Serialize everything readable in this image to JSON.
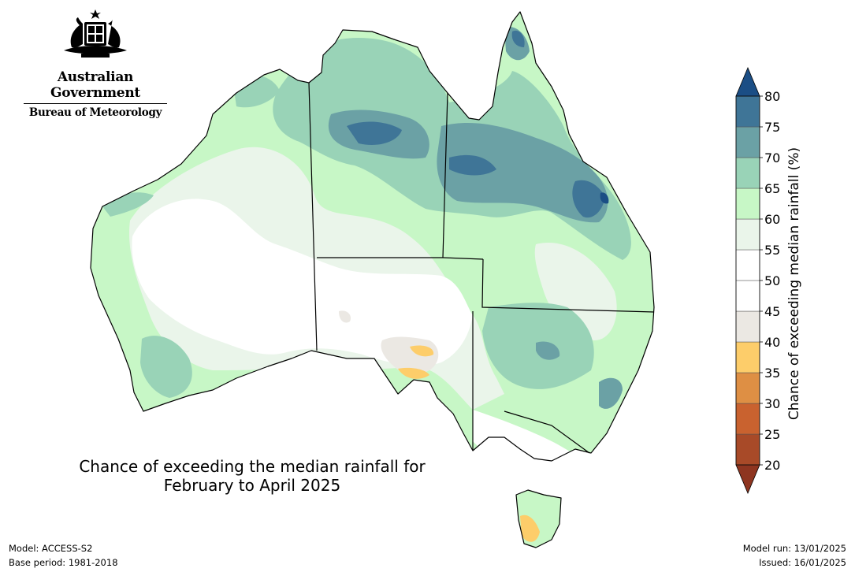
{
  "header": {
    "gov_name": "Australian Government",
    "agency_name": "Bureau of Meteorology"
  },
  "map": {
    "title_line1": "Chance of exceeding the median rainfall for",
    "title_line2": "February to April 2025"
  },
  "legend": {
    "label": "Chance of exceeding median rainfall (%)",
    "bins": [
      {
        "min": 20,
        "max": 25,
        "color": "#a84a28"
      },
      {
        "min": 25,
        "max": 30,
        "color": "#c9622f"
      },
      {
        "min": 30,
        "max": 35,
        "color": "#de8f44"
      },
      {
        "min": 35,
        "max": 40,
        "color": "#fdcd6a"
      },
      {
        "min": 40,
        "max": 45,
        "color": "#ebe8e3"
      },
      {
        "min": 45,
        "max": 50,
        "color": "#ffffff"
      },
      {
        "min": 50,
        "max": 55,
        "color": "#ffffff"
      },
      {
        "min": 55,
        "max": 60,
        "color": "#eaf5ea"
      },
      {
        "min": 60,
        "max": 65,
        "color": "#c7f7c6"
      },
      {
        "min": 65,
        "max": 70,
        "color": "#99d3b7"
      },
      {
        "min": 70,
        "max": 75,
        "color": "#6ba1a5"
      },
      {
        "min": 75,
        "max": 80,
        "color": "#3f7597"
      }
    ],
    "below_color": "#8e3520",
    "above_color": "#1b4e85",
    "ticks": [
      "20",
      "25",
      "30",
      "35",
      "40",
      "45",
      "50",
      "55",
      "60",
      "65",
      "70",
      "75",
      "80"
    ]
  },
  "footer": {
    "model": "Model: ACCESS-S2",
    "base_period": "Base period: 1981-2018",
    "model_run": "Model run: 13/01/2025",
    "issued": "Issued: 16/01/2025"
  }
}
